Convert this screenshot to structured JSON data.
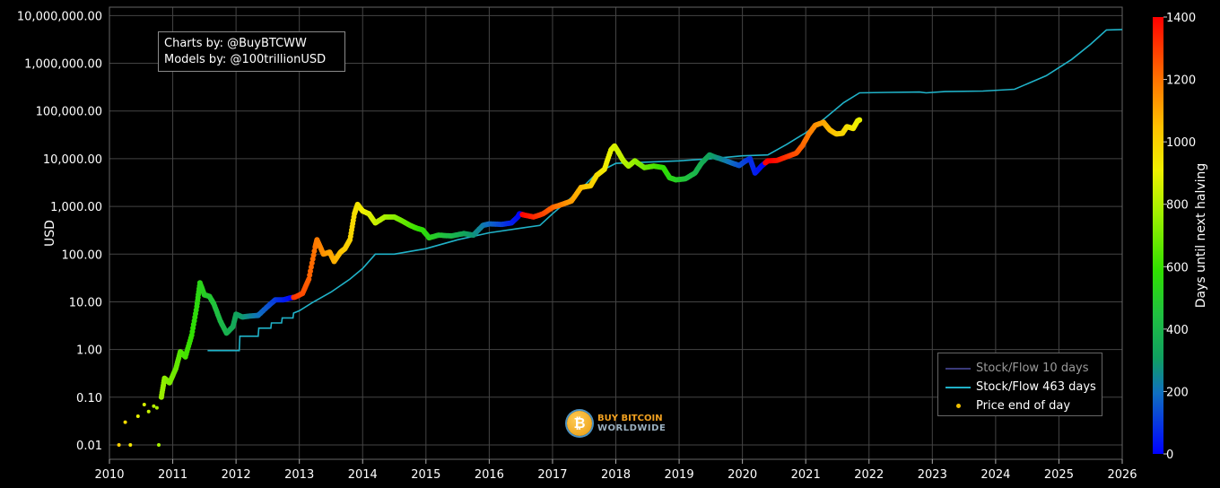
{
  "credits": {
    "line1": "Charts by: @BuyBTCWW",
    "line2": "Models by: @100trillionUSD"
  },
  "watermark": {
    "line1": "BUY BITCOIN",
    "line2": "WORLDWIDE",
    "symbol": "₿"
  },
  "chart_data": {
    "type": "scatter",
    "title": "",
    "ylabel": "USD",
    "colorbar_label": "Days until next halving",
    "y_scale": "log",
    "ylim": [
      0.005,
      15000000
    ],
    "xlim": [
      2010,
      2026
    ],
    "x_ticks": [
      "2010",
      "2011",
      "2012",
      "2013",
      "2014",
      "2015",
      "2016",
      "2017",
      "2018",
      "2019",
      "2020",
      "2021",
      "2022",
      "2023",
      "2024",
      "2025",
      "2026"
    ],
    "y_ticks": [
      {
        "value": 0.01,
        "label": "0.01"
      },
      {
        "value": 0.1,
        "label": "0.10"
      },
      {
        "value": 1,
        "label": "1.00"
      },
      {
        "value": 10,
        "label": "10.00"
      },
      {
        "value": 100,
        "label": "100.00"
      },
      {
        "value": 1000,
        "label": "1,000.00"
      },
      {
        "value": 10000,
        "label": "10,000.00"
      },
      {
        "value": 100000,
        "label": "100,000.00"
      },
      {
        "value": 1000000,
        "label": "1,000,000.00"
      },
      {
        "value": 10000000,
        "label": "10,000,000.00"
      }
    ],
    "colorbar": {
      "min": 0,
      "max": 1400,
      "ticks": [
        {
          "value": 0,
          "label": "0"
        },
        {
          "value": 200,
          "label": "200"
        },
        {
          "value": 400,
          "label": "400"
        },
        {
          "value": 600,
          "label": "600"
        },
        {
          "value": 800,
          "label": "800"
        },
        {
          "value": 1000,
          "label": "1000"
        },
        {
          "value": 1200,
          "label": "1200"
        },
        {
          "value": 1400,
          "label": "1400"
        }
      ]
    },
    "grid": true,
    "legend_position": "bottom-right",
    "halvings": [
      2012.91,
      2016.52,
      2020.36,
      2024.3
    ],
    "series": [
      {
        "name": "Stock/Flow 10 days",
        "color": "#3a3a7a",
        "visible_in_plot": false
      },
      {
        "name": "Stock/Flow 463 days",
        "color": "#20b2c8",
        "points": [
          [
            2011.55,
            0.95
          ],
          [
            2012.05,
            0.95
          ],
          [
            2012.06,
            1.9
          ],
          [
            2012.35,
            1.9
          ],
          [
            2012.36,
            2.8
          ],
          [
            2012.55,
            2.8
          ],
          [
            2012.56,
            3.6
          ],
          [
            2012.72,
            3.6
          ],
          [
            2012.73,
            4.6
          ],
          [
            2012.9,
            4.6
          ],
          [
            2012.91,
            5.8
          ],
          [
            2013.0,
            6.5
          ],
          [
            2013.2,
            9.5
          ],
          [
            2013.5,
            16
          ],
          [
            2013.8,
            30
          ],
          [
            2014.0,
            50
          ],
          [
            2014.2,
            100
          ],
          [
            2014.5,
            100
          ],
          [
            2015.0,
            130
          ],
          [
            2015.5,
            200
          ],
          [
            2016.0,
            280
          ],
          [
            2016.5,
            350
          ],
          [
            2016.8,
            400
          ],
          [
            2017.0,
            700
          ],
          [
            2017.4,
            2000
          ],
          [
            2017.7,
            5000
          ],
          [
            2018.0,
            8000
          ],
          [
            2018.5,
            8500
          ],
          [
            2019.0,
            9000
          ],
          [
            2019.5,
            10000
          ],
          [
            2020.0,
            11500
          ],
          [
            2020.4,
            12000
          ],
          [
            2020.7,
            20000
          ],
          [
            2021.0,
            35000
          ],
          [
            2021.3,
            70000
          ],
          [
            2021.6,
            150000
          ],
          [
            2021.85,
            240000
          ],
          [
            2022.3,
            245000
          ],
          [
            2022.8,
            250000
          ],
          [
            2022.9,
            240000
          ],
          [
            2023.2,
            255000
          ],
          [
            2023.8,
            262000
          ],
          [
            2024.3,
            285000
          ],
          [
            2024.8,
            550000
          ],
          [
            2025.2,
            1200000
          ],
          [
            2025.5,
            2500000
          ],
          [
            2025.75,
            5000000
          ],
          [
            2026.0,
            5100000
          ]
        ]
      },
      {
        "name": "Price end of day",
        "color": "#f0c000",
        "points": [
          [
            2010.15,
            0.01
          ],
          [
            2010.25,
            0.03
          ],
          [
            2010.33,
            0.01
          ],
          [
            2010.45,
            0.04
          ],
          [
            2010.55,
            0.07
          ],
          [
            2010.62,
            0.05
          ],
          [
            2010.7,
            0.065
          ],
          [
            2010.75,
            0.06
          ],
          [
            2010.78,
            0.01
          ],
          [
            2010.82,
            0.1
          ],
          [
            2010.87,
            0.25
          ],
          [
            2010.95,
            0.2
          ],
          [
            2011.05,
            0.4
          ],
          [
            2011.12,
            0.9
          ],
          [
            2011.2,
            0.7
          ],
          [
            2011.3,
            2
          ],
          [
            2011.38,
            8
          ],
          [
            2011.43,
            25
          ],
          [
            2011.5,
            14
          ],
          [
            2011.58,
            13
          ],
          [
            2011.65,
            9
          ],
          [
            2011.75,
            4
          ],
          [
            2011.85,
            2.2
          ],
          [
            2011.95,
            3
          ],
          [
            2012.0,
            5.5
          ],
          [
            2012.1,
            4.8
          ],
          [
            2012.2,
            5
          ],
          [
            2012.35,
            5.2
          ],
          [
            2012.5,
            8
          ],
          [
            2012.62,
            11
          ],
          [
            2012.75,
            11
          ],
          [
            2012.85,
            12
          ],
          [
            2012.93,
            12.5
          ],
          [
            2013.05,
            15
          ],
          [
            2013.15,
            30
          ],
          [
            2013.25,
            140
          ],
          [
            2013.28,
            200
          ],
          [
            2013.38,
            100
          ],
          [
            2013.48,
            110
          ],
          [
            2013.55,
            70
          ],
          [
            2013.65,
            110
          ],
          [
            2013.72,
            130
          ],
          [
            2013.8,
            200
          ],
          [
            2013.87,
            700
          ],
          [
            2013.92,
            1100
          ],
          [
            2014.0,
            800
          ],
          [
            2014.1,
            700
          ],
          [
            2014.2,
            450
          ],
          [
            2014.35,
            600
          ],
          [
            2014.5,
            600
          ],
          [
            2014.62,
            500
          ],
          [
            2014.75,
            400
          ],
          [
            2014.85,
            350
          ],
          [
            2014.95,
            320
          ],
          [
            2015.05,
            220
          ],
          [
            2015.2,
            250
          ],
          [
            2015.4,
            240
          ],
          [
            2015.6,
            270
          ],
          [
            2015.75,
            250
          ],
          [
            2015.9,
            400
          ],
          [
            2016.0,
            430
          ],
          [
            2016.2,
            420
          ],
          [
            2016.35,
            450
          ],
          [
            2016.45,
            600
          ],
          [
            2016.48,
            700
          ],
          [
            2016.55,
            660
          ],
          [
            2016.7,
            600
          ],
          [
            2016.85,
            700
          ],
          [
            2017.0,
            950
          ],
          [
            2017.15,
            1100
          ],
          [
            2017.3,
            1300
          ],
          [
            2017.45,
            2500
          ],
          [
            2017.6,
            2700
          ],
          [
            2017.7,
            4500
          ],
          [
            2017.82,
            6000
          ],
          [
            2017.92,
            15000
          ],
          [
            2017.98,
            18500
          ],
          [
            2018.05,
            13000
          ],
          [
            2018.12,
            9000
          ],
          [
            2018.2,
            7000
          ],
          [
            2018.3,
            9000
          ],
          [
            2018.45,
            6500
          ],
          [
            2018.6,
            7000
          ],
          [
            2018.75,
            6500
          ],
          [
            2018.85,
            4000
          ],
          [
            2018.95,
            3600
          ],
          [
            2019.1,
            3800
          ],
          [
            2019.25,
            5000
          ],
          [
            2019.35,
            8000
          ],
          [
            2019.48,
            12000
          ],
          [
            2019.55,
            11000
          ],
          [
            2019.7,
            9500
          ],
          [
            2019.85,
            8000
          ],
          [
            2019.95,
            7200
          ],
          [
            2020.05,
            9000
          ],
          [
            2020.12,
            10000
          ],
          [
            2020.2,
            5000
          ],
          [
            2020.3,
            7000
          ],
          [
            2020.4,
            9000
          ],
          [
            2020.55,
            9200
          ],
          [
            2020.7,
            11000
          ],
          [
            2020.85,
            13000
          ],
          [
            2020.95,
            19000
          ],
          [
            2021.05,
            33000
          ],
          [
            2021.15,
            50000
          ],
          [
            2021.28,
            58000
          ],
          [
            2021.38,
            40000
          ],
          [
            2021.48,
            33000
          ],
          [
            2021.58,
            34000
          ],
          [
            2021.65,
            47000
          ],
          [
            2021.75,
            43000
          ],
          [
            2021.82,
            62000
          ],
          [
            2021.85,
            65000
          ]
        ]
      }
    ]
  }
}
